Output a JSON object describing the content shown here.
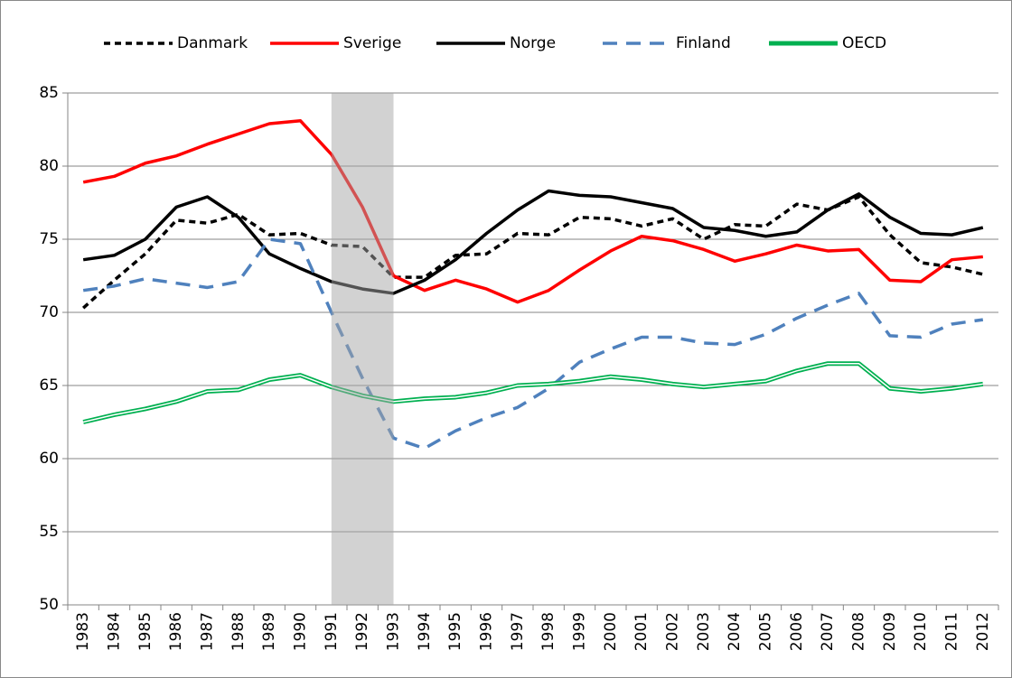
{
  "chart_data": {
    "type": "line",
    "categories": [
      "1983",
      "1984",
      "1985",
      "1986",
      "1987",
      "1988",
      "1989",
      "1990",
      "1991",
      "1992",
      "1993",
      "1994",
      "1995",
      "1996",
      "1997",
      "1998",
      "1999",
      "2000",
      "2001",
      "2002",
      "2003",
      "2004",
      "2005",
      "2006",
      "2007",
      "2008",
      "2009",
      "2010",
      "2011",
      "2012"
    ],
    "series": [
      {
        "name": "Danmark",
        "color": "#000000",
        "dash": "short",
        "values": [
          70.3,
          72.2,
          74.0,
          76.3,
          76.1,
          76.7,
          75.3,
          75.4,
          74.6,
          74.5,
          72.4,
          72.4,
          73.9,
          74.0,
          75.4,
          75.3,
          76.5,
          76.4,
          75.9,
          76.4,
          75.0,
          76.0,
          75.9,
          77.4,
          77.0,
          77.9,
          75.3,
          73.4,
          73.1,
          72.6
        ]
      },
      {
        "name": "Sverige",
        "color": "#ff0000",
        "dash": "solid",
        "values": [
          78.9,
          79.3,
          80.2,
          80.7,
          81.5,
          82.2,
          82.9,
          83.1,
          80.8,
          77.2,
          72.5,
          71.5,
          72.2,
          71.6,
          70.7,
          71.5,
          72.9,
          74.2,
          75.2,
          74.9,
          74.3,
          73.5,
          74.0,
          74.6,
          74.2,
          74.3,
          72.2,
          72.1,
          73.6,
          73.8
        ]
      },
      {
        "name": "Norge",
        "color": "#000000",
        "dash": "solid",
        "values": [
          73.6,
          73.9,
          75.0,
          77.2,
          77.9,
          76.5,
          74.0,
          73.0,
          72.1,
          71.6,
          71.3,
          72.2,
          73.6,
          75.4,
          77.0,
          78.3,
          78.0,
          77.9,
          77.5,
          77.1,
          75.8,
          75.6,
          75.2,
          75.5,
          77.0,
          78.1,
          76.5,
          75.4,
          75.3,
          75.8
        ]
      },
      {
        "name": "Finland",
        "color": "#4f81bd",
        "dash": "long",
        "values": [
          71.5,
          71.8,
          72.3,
          72.0,
          71.7,
          72.1,
          75.0,
          74.7,
          70.0,
          65.5,
          61.4,
          60.7,
          61.9,
          62.8,
          63.5,
          64.8,
          66.6,
          67.5,
          68.3,
          68.3,
          67.9,
          67.8,
          68.5,
          69.6,
          70.5,
          71.3,
          68.4,
          68.3,
          69.2,
          69.5
        ]
      },
      {
        "name": "OECD",
        "color": "#00b050",
        "dash": "double",
        "values": [
          62.5,
          63.0,
          63.4,
          63.9,
          64.6,
          64.7,
          65.4,
          65.7,
          64.9,
          64.3,
          63.9,
          64.1,
          64.2,
          64.5,
          65.0,
          65.1,
          65.3,
          65.6,
          65.4,
          65.1,
          64.9,
          65.1,
          65.3,
          66.0,
          66.5,
          66.5,
          64.8,
          64.6,
          64.8,
          65.1
        ]
      }
    ],
    "highlight": {
      "from": "1991",
      "to": "1993",
      "color": "#a6a6a6"
    },
    "ylim": [
      50,
      85
    ],
    "yticks": [
      50,
      55,
      60,
      65,
      70,
      75,
      80,
      85
    ],
    "grid": true,
    "legend": "top"
  }
}
